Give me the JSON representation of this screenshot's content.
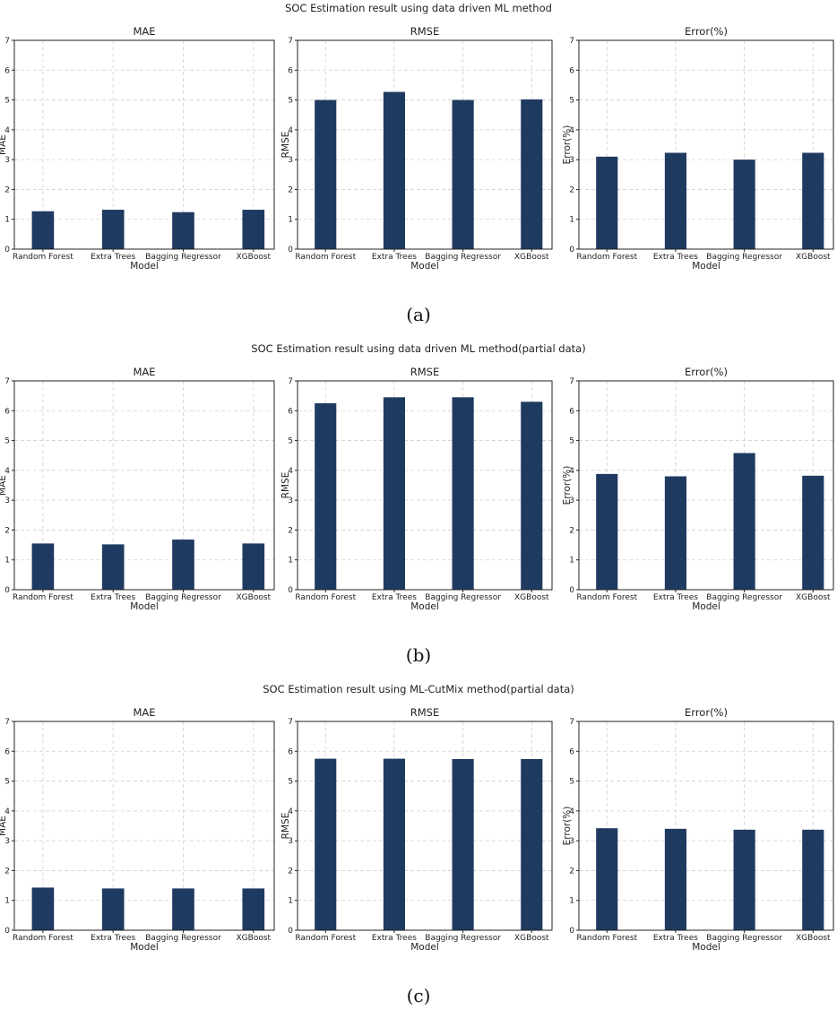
{
  "figure_colors": {
    "bar": "#1f3a60",
    "grid": "#d0d0d0",
    "axis": "#222222"
  },
  "chart_data": [
    {
      "panel": "(a)",
      "suptitle": "SOC Estimation result using data driven ML method",
      "subplots": [
        {
          "type": "bar",
          "title": "MAE",
          "xlabel": "Model",
          "ylabel": "MAE",
          "ylim": [
            0,
            7
          ],
          "grid": true,
          "categories": [
            "Random Forest",
            "Extra Trees",
            "Bagging Regressor",
            "XGBoost"
          ],
          "values": [
            1.27,
            1.32,
            1.24,
            1.32
          ]
        },
        {
          "type": "bar",
          "title": "RMSE",
          "xlabel": "Model",
          "ylabel": "RMSE",
          "ylim": [
            0,
            7
          ],
          "grid": true,
          "categories": [
            "Random Forest",
            "Extra Trees",
            "Bagging Regressor",
            "XGBoost"
          ],
          "values": [
            5.0,
            5.27,
            5.0,
            5.02
          ]
        },
        {
          "type": "bar",
          "title": "Error(%)",
          "xlabel": "Model",
          "ylabel": "Error(%)",
          "ylim": [
            0,
            7
          ],
          "grid": true,
          "categories": [
            "Random Forest",
            "Extra Trees",
            "Bagging Regressor",
            "XGBoost"
          ],
          "values": [
            3.1,
            3.23,
            3.0,
            3.23
          ]
        }
      ]
    },
    {
      "panel": "(b)",
      "suptitle": "SOC Estimation result using data driven ML method(partial data)",
      "subplots": [
        {
          "type": "bar",
          "title": "MAE",
          "xlabel": "Model",
          "ylabel": "MAE",
          "ylim": [
            0,
            7
          ],
          "grid": true,
          "categories": [
            "Random Forest",
            "Extra Trees",
            "Bagging Regressor",
            "XGBoost"
          ],
          "values": [
            1.55,
            1.52,
            1.68,
            1.55
          ]
        },
        {
          "type": "bar",
          "title": "RMSE",
          "xlabel": "Model",
          "ylabel": "RMSE",
          "ylim": [
            0,
            7
          ],
          "grid": true,
          "categories": [
            "Random Forest",
            "Extra Trees",
            "Bagging Regressor",
            "XGBoost"
          ],
          "values": [
            6.25,
            6.45,
            6.45,
            6.3
          ]
        },
        {
          "type": "bar",
          "title": "Error(%)",
          "xlabel": "Model",
          "ylabel": "Error(%)",
          "ylim": [
            0,
            7
          ],
          "grid": true,
          "categories": [
            "Random Forest",
            "Extra Trees",
            "Bagging Regressor",
            "XGBoost"
          ],
          "values": [
            3.88,
            3.8,
            4.58,
            3.82
          ]
        }
      ]
    },
    {
      "panel": "(c)",
      "suptitle": "SOC Estimation result using ML-CutMix method(partial data)",
      "subplots": [
        {
          "type": "bar",
          "title": "MAE",
          "xlabel": "Model",
          "ylabel": "MAE",
          "ylim": [
            0,
            7
          ],
          "grid": true,
          "categories": [
            "Random Forest",
            "Extra Trees",
            "Bagging Regressor",
            "XGBoost"
          ],
          "values": [
            1.43,
            1.4,
            1.4,
            1.4
          ]
        },
        {
          "type": "bar",
          "title": "RMSE",
          "xlabel": "Model",
          "ylabel": "RMSE",
          "ylim": [
            0,
            7
          ],
          "grid": true,
          "categories": [
            "Random Forest",
            "Extra Trees",
            "Bagging Regressor",
            "XGBoost"
          ],
          "values": [
            5.75,
            5.75,
            5.74,
            5.74
          ]
        },
        {
          "type": "bar",
          "title": "Error(%)",
          "xlabel": "Model",
          "ylabel": "Error(%)",
          "ylim": [
            0,
            7
          ],
          "grid": true,
          "categories": [
            "Random Forest",
            "Extra Trees",
            "Bagging Regressor",
            "XGBoost"
          ],
          "values": [
            3.42,
            3.4,
            3.37,
            3.37
          ]
        }
      ]
    }
  ]
}
